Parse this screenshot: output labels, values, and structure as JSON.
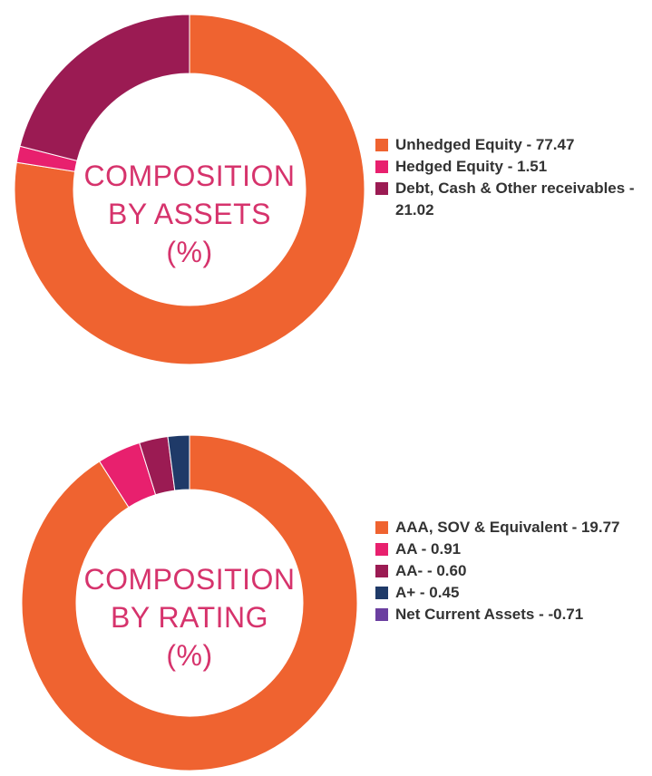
{
  "chart_data": [
    {
      "type": "pie",
      "variant": "donut",
      "title_lines": [
        "COMPOSITION",
        "BY ASSETS",
        "(%)"
      ],
      "slices": [
        {
          "label": "Unhedged Equity - 77.47",
          "value": 77.47,
          "color": "#ef6330"
        },
        {
          "label": "Hedged Equity - 1.51",
          "value": 1.51,
          "color": "#e8206e"
        },
        {
          "label": "Debt, Cash & Other receivables - 21.02",
          "value": 21.02,
          "color": "#9b1b53"
        }
      ],
      "legend_position": "right"
    },
    {
      "type": "pie",
      "variant": "donut",
      "title_lines": [
        "COMPOSITION",
        "BY RATING",
        "(%)"
      ],
      "slices": [
        {
          "label": "AAA, SOV & Equivalent - 19.77",
          "value": 19.77,
          "color": "#ef6330"
        },
        {
          "label": "AA - 0.91",
          "value": 0.91,
          "color": "#e8206e"
        },
        {
          "label": "AA- - 0.60",
          "value": 0.6,
          "color": "#9b1b53"
        },
        {
          "label": "A+ - 0.45",
          "value": 0.45,
          "color": "#1f3a68"
        },
        {
          "label": "Net Current Assets - -0.71",
          "value": -0.71,
          "color": "#6b3fa0"
        }
      ],
      "legend_position": "right"
    }
  ]
}
